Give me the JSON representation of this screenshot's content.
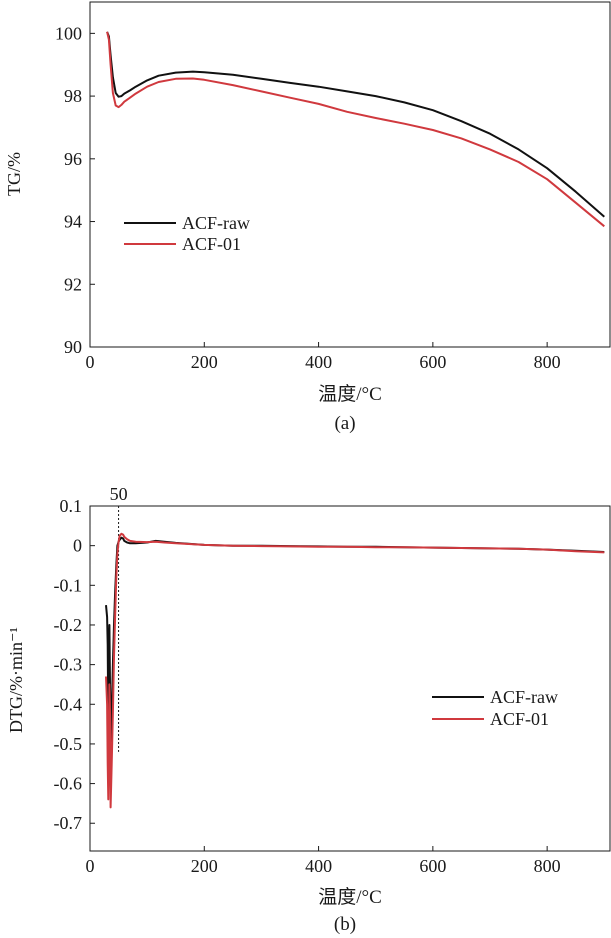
{
  "chart_data": [
    {
      "type": "line",
      "title": "",
      "caption": "(a)",
      "xlabel": "温度/°C",
      "ylabel": "TG/%",
      "xlim": [
        0,
        910
      ],
      "ylim": [
        90,
        101
      ],
      "xticks": [
        0,
        200,
        400,
        600,
        800
      ],
      "yticks": [
        90,
        92,
        94,
        96,
        98,
        100
      ],
      "legend_position": "left",
      "grid": false,
      "series": [
        {
          "name": "ACF-raw",
          "color": "#111111",
          "x": [
            30,
            33,
            36,
            40,
            45,
            50,
            55,
            60,
            70,
            80,
            100,
            120,
            150,
            180,
            200,
            250,
            300,
            350,
            400,
            450,
            500,
            550,
            600,
            650,
            700,
            750,
            800,
            850,
            900
          ],
          "y": [
            100.05,
            99.9,
            99.3,
            98.6,
            98.1,
            97.98,
            98.0,
            98.08,
            98.18,
            98.3,
            98.5,
            98.65,
            98.75,
            98.78,
            98.76,
            98.68,
            98.55,
            98.42,
            98.3,
            98.15,
            98.0,
            97.8,
            97.55,
            97.2,
            96.8,
            96.3,
            95.7,
            94.95,
            94.15
          ]
        },
        {
          "name": "ACF-01",
          "color": "#d0393e",
          "x": [
            30,
            33,
            36,
            40,
            45,
            50,
            55,
            60,
            70,
            80,
            100,
            120,
            150,
            180,
            200,
            250,
            300,
            350,
            400,
            450,
            500,
            550,
            600,
            650,
            700,
            750,
            800,
            850,
            900
          ],
          "y": [
            100.05,
            99.8,
            99.0,
            98.1,
            97.7,
            97.65,
            97.72,
            97.82,
            97.95,
            98.08,
            98.3,
            98.45,
            98.55,
            98.56,
            98.52,
            98.35,
            98.15,
            97.95,
            97.75,
            97.5,
            97.3,
            97.12,
            96.92,
            96.65,
            96.3,
            95.9,
            95.35,
            94.6,
            93.85
          ]
        }
      ]
    },
    {
      "type": "line",
      "title": "",
      "caption": "(b)",
      "xlabel": "温度/°C",
      "ylabel": "DTG/%·min⁻¹",
      "xlim": [
        0,
        910
      ],
      "ylim": [
        -0.77,
        0.1
      ],
      "xticks": [
        0,
        200,
        400,
        600,
        800
      ],
      "yticks": [
        0.1,
        0,
        -0.1,
        -0.2,
        -0.3,
        -0.4,
        -0.5,
        -0.6,
        -0.7
      ],
      "ytick_labels": [
        "0.1",
        "0",
        "-0.1",
        "-0.2",
        "-0.3",
        "-0.4",
        "-0.5",
        "-0.6",
        "-0.7"
      ],
      "legend_position": "right",
      "grid": false,
      "annotation": {
        "x": 50,
        "label": "50"
      },
      "series": [
        {
          "name": "ACF-raw",
          "color": "#111111",
          "x": [
            28,
            30,
            31,
            32,
            33,
            34,
            35,
            36,
            38,
            40,
            42,
            44,
            46,
            48,
            50,
            52,
            55,
            58,
            60,
            65,
            70,
            80,
            100,
            115,
            130,
            150,
            200,
            250,
            300,
            350,
            400,
            450,
            500,
            550,
            600,
            650,
            700,
            750,
            800,
            850,
            900
          ],
          "y": [
            -0.15,
            -0.18,
            -0.25,
            -0.45,
            -0.3,
            -0.2,
            -0.35,
            -0.5,
            -0.42,
            -0.3,
            -0.2,
            -0.12,
            -0.05,
            0.0,
            0.01,
            0.015,
            0.02,
            0.018,
            0.012,
            0.008,
            0.006,
            0.006,
            0.008,
            0.012,
            0.01,
            0.007,
            0.002,
            0.0,
            0.0,
            -0.001,
            -0.002,
            -0.003,
            -0.003,
            -0.004,
            -0.005,
            -0.006,
            -0.007,
            -0.008,
            -0.01,
            -0.013,
            -0.016
          ]
        },
        {
          "name": "ACF-01",
          "color": "#d0393e",
          "x": [
            28,
            30,
            31,
            32,
            33,
            34,
            35,
            36,
            38,
            40,
            42,
            44,
            46,
            48,
            50,
            52,
            55,
            58,
            60,
            65,
            70,
            80,
            100,
            115,
            130,
            150,
            200,
            250,
            300,
            350,
            400,
            450,
            500,
            550,
            600,
            650,
            700,
            750,
            800,
            850,
            900
          ],
          "y": [
            -0.33,
            -0.4,
            -0.55,
            -0.64,
            -0.5,
            -0.35,
            -0.42,
            -0.66,
            -0.55,
            -0.42,
            -0.28,
            -0.18,
            -0.08,
            -0.02,
            0.01,
            0.025,
            0.03,
            0.028,
            0.022,
            0.016,
            0.012,
            0.01,
            0.009,
            0.01,
            0.008,
            0.006,
            0.002,
            0.0,
            -0.001,
            -0.002,
            -0.003,
            -0.003,
            -0.004,
            -0.004,
            -0.005,
            -0.006,
            -0.007,
            -0.008,
            -0.01,
            -0.014,
            -0.017
          ]
        }
      ]
    }
  ]
}
